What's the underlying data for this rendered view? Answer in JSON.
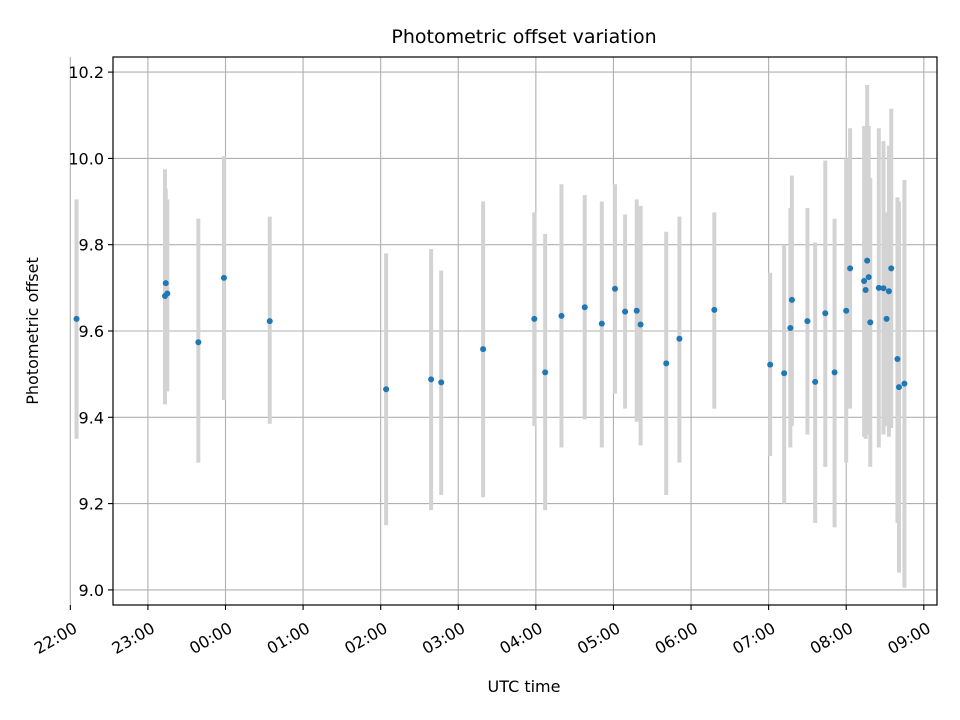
{
  "chart_data": {
    "type": "scatter",
    "title": "Photometric offset variation",
    "xlabel": "UTC time",
    "ylabel": "Photometric offset",
    "x_unit": "hours, clock time relative to 00:00 (values before midnight are negative)",
    "xlim": [
      -1.45,
      9.17
    ],
    "ylim": [
      8.965,
      10.235
    ],
    "x_ticks": [
      {
        "value": -2,
        "label": "22:00"
      },
      {
        "value": -1,
        "label": "23:00"
      },
      {
        "value": 0,
        "label": "00:00"
      },
      {
        "value": 1,
        "label": "01:00"
      },
      {
        "value": 2,
        "label": "02:00"
      },
      {
        "value": 3,
        "label": "03:00"
      },
      {
        "value": 4,
        "label": "04:00"
      },
      {
        "value": 5,
        "label": "05:00"
      },
      {
        "value": 6,
        "label": "06:00"
      },
      {
        "value": 7,
        "label": "07:00"
      },
      {
        "value": 8,
        "label": "08:00"
      },
      {
        "value": 9,
        "label": "09:00"
      }
    ],
    "y_ticks": [
      {
        "value": 9.0,
        "label": "9.0"
      },
      {
        "value": 9.2,
        "label": "9.2"
      },
      {
        "value": 9.4,
        "label": "9.4"
      },
      {
        "value": 9.6,
        "label": "9.6"
      },
      {
        "value": 9.8,
        "label": "9.8"
      },
      {
        "value": 10.0,
        "label": "10.0"
      },
      {
        "value": 10.2,
        "label": "10.2"
      }
    ],
    "grid": true,
    "point_color": "#1f77b4",
    "errorbar_color": "#d3d3d3",
    "points": [
      {
        "x": -1.92,
        "y": 9.628,
        "lo": 9.35,
        "hi": 9.905
      },
      {
        "x": -0.78,
        "y": 9.681,
        "lo": 9.43,
        "hi": 9.975
      },
      {
        "x": -0.77,
        "y": 9.711,
        "lo": 9.47,
        "hi": 9.93
      },
      {
        "x": -0.75,
        "y": 9.687,
        "lo": 9.46,
        "hi": 9.905
      },
      {
        "x": -0.35,
        "y": 9.574,
        "lo": 9.295,
        "hi": 9.86
      },
      {
        "x": -0.02,
        "y": 9.723,
        "lo": 9.44,
        "hi": 10.005
      },
      {
        "x": 0.57,
        "y": 9.623,
        "lo": 9.385,
        "hi": 9.865
      },
      {
        "x": 2.07,
        "y": 9.465,
        "lo": 9.15,
        "hi": 9.78
      },
      {
        "x": 2.65,
        "y": 9.488,
        "lo": 9.185,
        "hi": 9.79
      },
      {
        "x": 2.78,
        "y": 9.481,
        "lo": 9.22,
        "hi": 9.74
      },
      {
        "x": 3.32,
        "y": 9.558,
        "lo": 9.215,
        "hi": 9.9
      },
      {
        "x": 3.98,
        "y": 9.628,
        "lo": 9.38,
        "hi": 9.875
      },
      {
        "x": 4.12,
        "y": 9.504,
        "lo": 9.185,
        "hi": 9.825
      },
      {
        "x": 4.33,
        "y": 9.635,
        "lo": 9.33,
        "hi": 9.94
      },
      {
        "x": 4.63,
        "y": 9.655,
        "lo": 9.395,
        "hi": 9.915
      },
      {
        "x": 4.85,
        "y": 9.617,
        "lo": 9.33,
        "hi": 9.9
      },
      {
        "x": 5.02,
        "y": 9.698,
        "lo": 9.455,
        "hi": 9.94
      },
      {
        "x": 5.15,
        "y": 9.645,
        "lo": 9.42,
        "hi": 9.87
      },
      {
        "x": 5.3,
        "y": 9.647,
        "lo": 9.39,
        "hi": 9.905
      },
      {
        "x": 5.35,
        "y": 9.615,
        "lo": 9.335,
        "hi": 9.89
      },
      {
        "x": 5.68,
        "y": 9.525,
        "lo": 9.22,
        "hi": 9.83
      },
      {
        "x": 5.85,
        "y": 9.582,
        "lo": 9.295,
        "hi": 9.865
      },
      {
        "x": 6.3,
        "y": 9.649,
        "lo": 9.42,
        "hi": 9.875
      },
      {
        "x": 7.02,
        "y": 9.522,
        "lo": 9.31,
        "hi": 9.735
      },
      {
        "x": 7.2,
        "y": 9.502,
        "lo": 9.2,
        "hi": 9.8
      },
      {
        "x": 7.28,
        "y": 9.607,
        "lo": 9.33,
        "hi": 9.885
      },
      {
        "x": 7.3,
        "y": 9.672,
        "lo": 9.38,
        "hi": 9.96
      },
      {
        "x": 7.5,
        "y": 9.623,
        "lo": 9.36,
        "hi": 9.885
      },
      {
        "x": 7.6,
        "y": 9.482,
        "lo": 9.155,
        "hi": 9.805
      },
      {
        "x": 7.73,
        "y": 9.641,
        "lo": 9.285,
        "hi": 9.995
      },
      {
        "x": 7.85,
        "y": 9.504,
        "lo": 9.145,
        "hi": 9.86
      },
      {
        "x": 8.0,
        "y": 9.647,
        "lo": 9.295,
        "hi": 10.0
      },
      {
        "x": 8.05,
        "y": 9.745,
        "lo": 9.42,
        "hi": 10.07
      },
      {
        "x": 8.23,
        "y": 9.716,
        "lo": 9.355,
        "hi": 10.075
      },
      {
        "x": 8.25,
        "y": 9.695,
        "lo": 9.35,
        "hi": 10.04
      },
      {
        "x": 8.27,
        "y": 9.763,
        "lo": 9.36,
        "hi": 10.17
      },
      {
        "x": 8.29,
        "y": 9.725,
        "lo": 9.375,
        "hi": 10.075
      },
      {
        "x": 8.31,
        "y": 9.62,
        "lo": 9.285,
        "hi": 9.955
      },
      {
        "x": 8.42,
        "y": 9.7,
        "lo": 9.33,
        "hi": 10.07
      },
      {
        "x": 8.48,
        "y": 9.699,
        "lo": 9.36,
        "hi": 10.04
      },
      {
        "x": 8.52,
        "y": 9.628,
        "lo": 9.38,
        "hi": 9.875
      },
      {
        "x": 8.55,
        "y": 9.692,
        "lo": 9.355,
        "hi": 10.03
      },
      {
        "x": 8.58,
        "y": 9.745,
        "lo": 9.375,
        "hi": 10.115
      },
      {
        "x": 8.66,
        "y": 9.535,
        "lo": 9.155,
        "hi": 9.91
      },
      {
        "x": 8.68,
        "y": 9.47,
        "lo": 9.04,
        "hi": 9.9
      },
      {
        "x": 8.75,
        "y": 9.478,
        "lo": 9.005,
        "hi": 9.95
      }
    ]
  }
}
